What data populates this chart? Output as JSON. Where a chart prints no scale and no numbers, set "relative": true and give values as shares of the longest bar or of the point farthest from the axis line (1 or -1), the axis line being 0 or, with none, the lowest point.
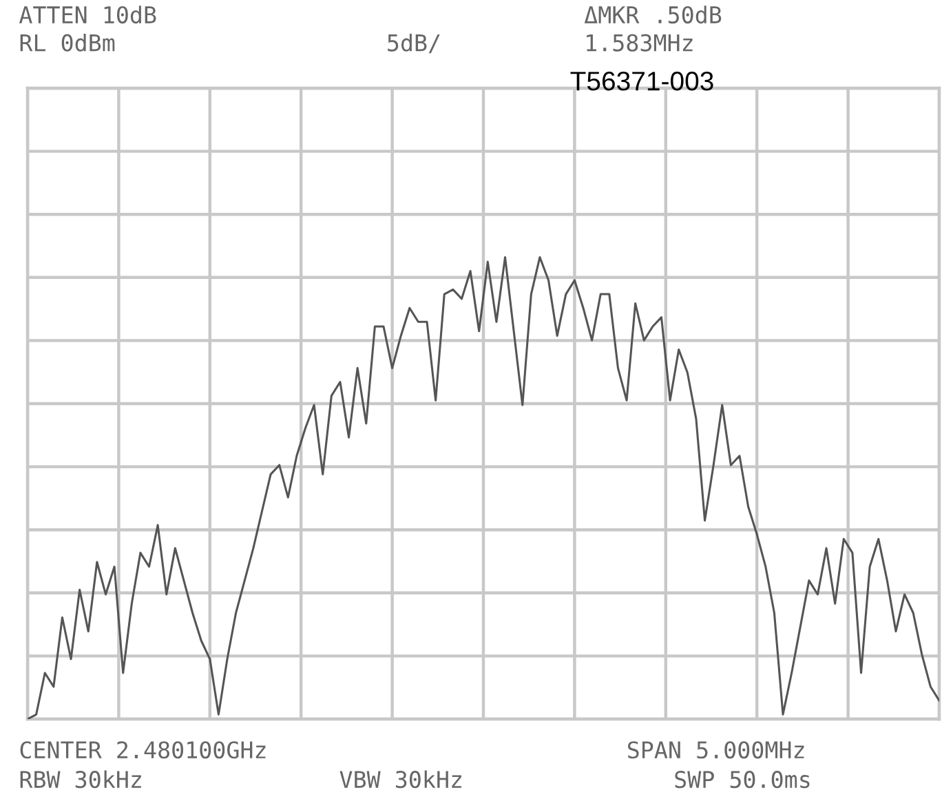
{
  "chart_data": {
    "type": "line",
    "annotations": [
      "ATTEN 10dB",
      "RL 0dBm",
      "5dB/",
      "ΔMKR .50dB",
      "1.583MHz",
      "T56371-003",
      "CENTER 2.480100GHz",
      "SPAN 5.000MHz",
      "RBW 30kHz",
      "VBW 30kHz",
      "SWP 50.0ms"
    ],
    "relative": true,
    "grid": true,
    "categories": [
      null,
      null,
      null,
      null,
      null,
      null,
      null,
      null,
      null,
      null,
      null,
      null,
      null,
      null,
      null,
      null,
      null,
      null,
      null,
      null,
      null,
      null,
      null,
      null,
      null,
      null,
      null,
      null,
      null,
      null,
      null,
      null,
      null,
      null,
      null,
      null,
      null,
      null,
      null,
      null,
      null,
      null,
      null,
      null,
      null,
      null,
      null,
      null,
      null,
      null,
      null,
      null,
      null,
      null,
      null,
      null,
      null,
      null,
      null,
      null,
      null,
      null,
      null,
      null,
      null,
      null,
      null,
      null,
      null,
      null,
      null,
      null,
      null,
      null,
      null,
      null,
      null,
      null,
      null,
      null,
      null,
      null,
      null,
      null,
      null,
      null,
      null,
      null,
      null,
      null,
      null,
      null,
      null,
      null,
      null,
      null,
      null,
      null,
      null,
      null,
      null,
      null,
      null,
      null,
      null,
      null
    ],
    "series": [
      {
        "color": "#555555",
        "values": [
          0,
          0.01,
          0.1,
          0.07,
          0.22,
          0.13,
          0.28,
          0.19,
          0.34,
          0.27,
          0.33,
          0.1,
          0.25,
          0.36,
          0.33,
          0.42,
          0.27,
          0.37,
          0.3,
          0.23,
          0.17,
          0.13,
          0.01,
          0.13,
          0.23,
          0.3,
          0.37,
          0.45,
          0.53,
          0.55,
          0.48,
          0.57,
          0.63,
          0.68,
          0.53,
          0.7,
          0.73,
          0.61,
          0.76,
          0.64,
          0.85,
          0.85,
          0.76,
          0.83,
          0.89,
          0.86,
          0.86,
          0.69,
          0.92,
          0.93,
          0.91,
          0.97,
          0.84,
          0.99,
          0.86,
          1,
          0.84,
          0.68,
          0.92,
          1,
          0.95,
          0.83,
          0.92,
          0.95,
          0.89,
          0.82,
          0.92,
          0.92,
          0.76,
          0.69,
          0.9,
          0.82,
          0.85,
          0.87,
          0.69,
          0.8,
          0.75,
          0.65,
          0.43,
          0.55,
          0.68,
          0.55,
          0.57,
          0.46,
          0.4,
          0.33,
          0.23,
          0.01,
          0.1,
          0.2,
          0.3,
          0.27,
          0.37,
          0.25,
          0.39,
          0.36,
          0.1,
          0.33,
          0.39,
          0.3,
          0.19,
          0.27,
          0.23,
          0.14,
          0.07,
          0.04
        ]
      }
    ]
  }
}
